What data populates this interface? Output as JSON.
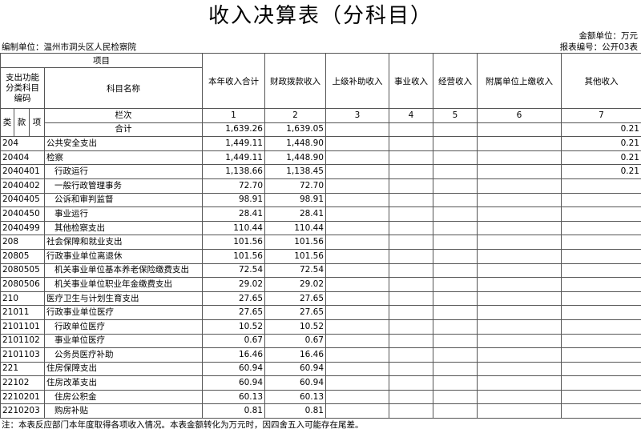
{
  "title": "收入决算表（分科目）",
  "unit": "金额单位：万元",
  "org": "编制单位：温州市洞头区人民检察院",
  "report_no": "报表编号：公开03表",
  "header": {
    "item": "项目",
    "code": "支出功能分类科目编码",
    "name": "科目名称",
    "columns": [
      "本年收入合计",
      "财政拨款收入",
      "上级补助收入",
      "事业收入",
      "经营收入",
      "附属单位上缴收入",
      "其他收入"
    ],
    "lei": "类",
    "kuan": "款",
    "xiang": "项",
    "index_label": "栏次",
    "index_numbers": [
      1,
      2,
      3,
      4,
      5,
      6,
      7
    ]
  },
  "total": {
    "label": "合计",
    "values": [
      "1,639.26",
      "1,639.05",
      null,
      null,
      null,
      null,
      "0.21"
    ]
  },
  "rows": [
    {
      "code": "204",
      "name": "公共安全支出",
      "values": [
        "1,449.11",
        "1,448.90",
        null,
        null,
        null,
        null,
        "0.21"
      ]
    },
    {
      "code": "20404",
      "name": "检察",
      "values": [
        "1,449.11",
        "1,448.90",
        null,
        null,
        null,
        null,
        "0.21"
      ]
    },
    {
      "code": "2040401",
      "name": "行政运行",
      "values": [
        "1,138.66",
        "1,138.45",
        null,
        null,
        null,
        null,
        "0.21"
      ]
    },
    {
      "code": "2040402",
      "name": "一般行政管理事务",
      "values": [
        "72.70",
        "72.70",
        null,
        null,
        null,
        null,
        null
      ]
    },
    {
      "code": "2040405",
      "name": "公诉和审判监督",
      "values": [
        "98.91",
        "98.91",
        null,
        null,
        null,
        null,
        null
      ]
    },
    {
      "code": "2040450",
      "name": "事业运行",
      "values": [
        "28.41",
        "28.41",
        null,
        null,
        null,
        null,
        null
      ]
    },
    {
      "code": "2040499",
      "name": "其他检察支出",
      "values": [
        "110.44",
        "110.44",
        null,
        null,
        null,
        null,
        null
      ]
    },
    {
      "code": "208",
      "name": "社会保障和就业支出",
      "values": [
        "101.56",
        "101.56",
        null,
        null,
        null,
        null,
        null
      ]
    },
    {
      "code": "20805",
      "name": "行政事业单位离退休",
      "values": [
        "101.56",
        "101.56",
        null,
        null,
        null,
        null,
        null
      ]
    },
    {
      "code": "2080505",
      "name": "机关事业单位基本养老保险缴费支出",
      "values": [
        "72.54",
        "72.54",
        null,
        null,
        null,
        null,
        null
      ]
    },
    {
      "code": "2080506",
      "name": "机关事业单位职业年金缴费支出",
      "values": [
        "29.02",
        "29.02",
        null,
        null,
        null,
        null,
        null
      ]
    },
    {
      "code": "210",
      "name": "医疗卫生与计划生育支出",
      "values": [
        "27.65",
        "27.65",
        null,
        null,
        null,
        null,
        null
      ]
    },
    {
      "code": "21011",
      "name": "行政事业单位医疗",
      "values": [
        "27.65",
        "27.65",
        null,
        null,
        null,
        null,
        null
      ]
    },
    {
      "code": "2101101",
      "name": "行政单位医疗",
      "values": [
        "10.52",
        "10.52",
        null,
        null,
        null,
        null,
        null
      ]
    },
    {
      "code": "2101102",
      "name": "事业单位医疗",
      "values": [
        "0.67",
        "0.67",
        null,
        null,
        null,
        null,
        null
      ]
    },
    {
      "code": "2101103",
      "name": "公务员医疗补助",
      "values": [
        "16.46",
        "16.46",
        null,
        null,
        null,
        null,
        null
      ]
    },
    {
      "code": "221",
      "name": "住房保障支出",
      "values": [
        "60.94",
        "60.94",
        null,
        null,
        null,
        null,
        null
      ]
    },
    {
      "code": "22102",
      "name": "住房改革支出",
      "values": [
        "60.94",
        "60.94",
        null,
        null,
        null,
        null,
        null
      ]
    },
    {
      "code": "2210201",
      "name": "住房公积金",
      "values": [
        "60.13",
        "60.13",
        null,
        null,
        null,
        null,
        null
      ]
    },
    {
      "code": "2210203",
      "name": "购房补贴",
      "values": [
        "0.81",
        "0.81",
        null,
        null,
        null,
        null,
        null
      ]
    }
  ],
  "note": "注：本表反应部门本年度取得各项收入情况。本表金额转化为万元时，因四舍五入可能存在尾差。"
}
